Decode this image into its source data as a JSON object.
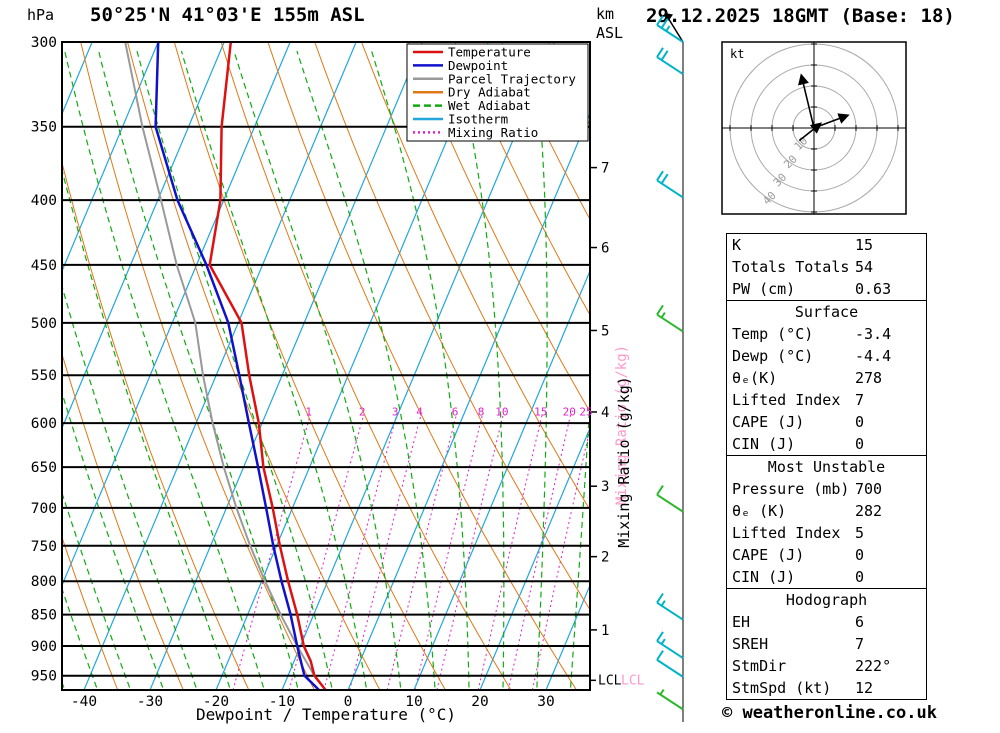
{
  "header": {
    "pressure_unit": "hPa",
    "title": "50°25'N 41°03'E 155m ASL",
    "altitude_unit_top": "km",
    "altitude_unit_bottom": "ASL",
    "datetime": "29.12.2025 18GMT (Base: 18)"
  },
  "legend": [
    {
      "label": "Temperature",
      "color": "#dd1111",
      "style": "solid"
    },
    {
      "label": "Dewpoint",
      "color": "#1111cc",
      "style": "solid"
    },
    {
      "label": "Parcel Trajectory",
      "color": "#999999",
      "style": "solid"
    },
    {
      "label": "Dry Adiabat",
      "color": "#e07818",
      "style": "solid"
    },
    {
      "label": "Wet Adiabat",
      "color": "#11aa11",
      "style": "dashed"
    },
    {
      "label": "Isotherm",
      "color": "#22a6dd",
      "style": "solid"
    },
    {
      "label": "Mixing Ratio",
      "color": "#dd22cc",
      "style": "dotted"
    }
  ],
  "axes": {
    "xlabel": "Dewpoint / Temperature (°C)",
    "x_ticks": [
      -40,
      -30,
      -20,
      -10,
      0,
      10,
      20,
      30
    ],
    "pressure_ticks": [
      300,
      350,
      400,
      450,
      500,
      550,
      600,
      650,
      700,
      750,
      800,
      850,
      900,
      950
    ],
    "km_ticks": [
      {
        "km": 1,
        "p": 874
      },
      {
        "km": 2,
        "p": 765
      },
      {
        "km": 3,
        "p": 673
      },
      {
        "km": 4,
        "p": 588
      },
      {
        "km": 5,
        "p": 507
      },
      {
        "km": 6,
        "p": 436
      },
      {
        "km": 7,
        "p": 377
      }
    ],
    "lcl_pressure": 958,
    "lcl_label": "LCL",
    "mixing_axis_label": "Mixing Ratio (g/kg)",
    "mixing_ratio_values": [
      1,
      2,
      3,
      4,
      6,
      8,
      10,
      15,
      20,
      25
    ]
  },
  "chart_data": {
    "type": "skewt-log-p",
    "pressure_range": [
      300,
      975
    ],
    "surface_temp_axis_range": [
      -40,
      30
    ],
    "colors": {
      "temperature": "#dd1111",
      "dewpoint": "#1111cc",
      "parcel": "#999999",
      "dry_adiabat": "#e07818",
      "wet_adiabat": "#11aa11",
      "isotherm": "#22a6dd",
      "mixing_ratio": "#dd22cc",
      "barb_cyan": "#00b4c8",
      "barb_green": "#2eb82e",
      "watermark_pink": "#ff99cc"
    },
    "series": [
      {
        "name": "Temperature",
        "color": "#dd1111",
        "points": [
          [
            975,
            -3.4
          ],
          [
            950,
            -6
          ],
          [
            925,
            -7.5
          ],
          [
            900,
            -9.5
          ],
          [
            850,
            -12.5
          ],
          [
            800,
            -16
          ],
          [
            750,
            -19.5
          ],
          [
            700,
            -23
          ],
          [
            650,
            -27
          ],
          [
            600,
            -30.5
          ],
          [
            550,
            -35
          ],
          [
            500,
            -39.5
          ],
          [
            450,
            -48
          ],
          [
            400,
            -50.5
          ],
          [
            350,
            -55
          ],
          [
            300,
            -59
          ]
        ]
      },
      {
        "name": "Dewpoint",
        "color": "#1111cc",
        "points": [
          [
            975,
            -4.4
          ],
          [
            950,
            -7.5
          ],
          [
            925,
            -9
          ],
          [
            900,
            -10.5
          ],
          [
            850,
            -13.5
          ],
          [
            800,
            -17
          ],
          [
            750,
            -20.5
          ],
          [
            700,
            -24
          ],
          [
            650,
            -27.8
          ],
          [
            600,
            -32
          ],
          [
            550,
            -36.5
          ],
          [
            500,
            -41.5
          ],
          [
            450,
            -48.5
          ],
          [
            400,
            -57
          ],
          [
            350,
            -65
          ],
          [
            300,
            -70
          ]
        ]
      },
      {
        "name": "Parcel Trajectory",
        "color": "#999999",
        "points": [
          [
            975,
            -3.4
          ],
          [
            950,
            -6
          ],
          [
            900,
            -10.5
          ],
          [
            850,
            -15
          ],
          [
            800,
            -19.5
          ],
          [
            750,
            -24
          ],
          [
            700,
            -28.5
          ],
          [
            650,
            -33
          ],
          [
            600,
            -37.5
          ],
          [
            550,
            -42
          ],
          [
            500,
            -46.5
          ],
          [
            450,
            -53
          ],
          [
            400,
            -59.5
          ],
          [
            350,
            -67
          ],
          [
            300,
            -75
          ]
        ]
      }
    ],
    "wind_barbs": [
      {
        "p": 300,
        "speed": 25,
        "color": "#00b4c8"
      },
      {
        "p": 318,
        "speed": 20,
        "color": "#00b4c8"
      },
      {
        "p": 398,
        "speed": 20,
        "color": "#00b4c8"
      },
      {
        "p": 508,
        "speed": 15,
        "color": "#2eb82e"
      },
      {
        "p": 705,
        "speed": 10,
        "color": "#2eb82e"
      },
      {
        "p": 858,
        "speed": 15,
        "color": "#00b4c8"
      },
      {
        "p": 920,
        "speed": 15,
        "color": "#00b4c8"
      },
      {
        "p": 952,
        "speed": 10,
        "color": "#00b4c8"
      },
      {
        "p": 1010,
        "speed": 5,
        "color": "#2eb82e"
      }
    ],
    "hodograph": {
      "unit_label": "kt",
      "rings": [
        10,
        20,
        30,
        40
      ],
      "vectors": [
        {
          "u1": 0,
          "v1": 0,
          "u2": -6,
          "v2": 25
        },
        {
          "u1": 0,
          "v1": 0,
          "u2": 16,
          "v2": 6
        },
        {
          "u1": -7,
          "v1": -6,
          "u2": 3,
          "v2": 2
        }
      ]
    }
  },
  "stats": {
    "indices": {
      "rows": [
        [
          "K",
          "15"
        ],
        [
          "Totals Totals",
          "54"
        ],
        [
          "PW (cm)",
          "0.63"
        ]
      ]
    },
    "surface": {
      "title": "Surface",
      "rows": [
        [
          "Temp (°C)",
          "-3.4"
        ],
        [
          "Dewp (°C)",
          "-4.4"
        ],
        [
          "θₑ(K)",
          "278"
        ],
        [
          "Lifted Index",
          "7"
        ],
        [
          "CAPE (J)",
          "0"
        ],
        [
          "CIN (J)",
          "0"
        ]
      ]
    },
    "most_unstable": {
      "title": "Most Unstable",
      "rows": [
        [
          "Pressure (mb)",
          "700"
        ],
        [
          "θₑ (K)",
          "282"
        ],
        [
          "Lifted Index",
          "5"
        ],
        [
          "CAPE (J)",
          "0"
        ],
        [
          "CIN (J)",
          "0"
        ]
      ]
    },
    "hodograph": {
      "title": "Hodograph",
      "rows": [
        [
          "EH",
          "6"
        ],
        [
          "SREH",
          "7"
        ],
        [
          "StmDir",
          "222°"
        ],
        [
          "StmSpd (kt)",
          "12"
        ]
      ]
    }
  },
  "footer": {
    "copyright": "© weatheronline.co.uk"
  }
}
